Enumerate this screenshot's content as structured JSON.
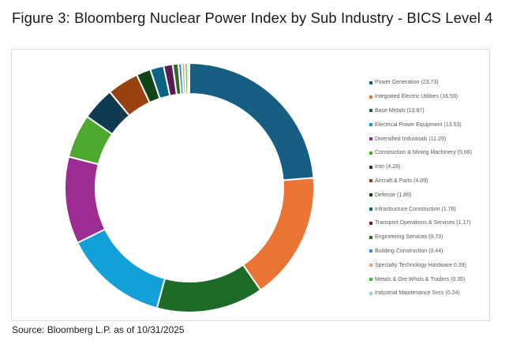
{
  "title": "Figure 3: Bloomberg Nuclear Power Index by Sub Industry - BICS Level 4",
  "source": "Source: Bloomberg L.P. as of 10/31/2025",
  "chart_data": {
    "type": "pie",
    "subtype": "donut",
    "title": "Figure 3: Bloomberg Nuclear Power Index by Sub Industry - BICS Level 4",
    "legend_position": "right",
    "categories": [
      "Power Generation",
      "Integrated Electric Utilities",
      "Base Metals",
      "Electrical Power Equipment",
      "Diversified Industrials",
      "Construction & Mining Machinery",
      "Iron",
      "Aircraft & Parts",
      "Defense",
      "Infrastructure Construction",
      "Transport Operations & Services",
      "Engineering Services",
      "Building Construction",
      "Specialty Technology Hardware",
      "Metals & Ore Whsls & Traders",
      "Industrial Maintenance Svcs"
    ],
    "values": [
      23.73,
      16.59,
      13.87,
      13.53,
      11.29,
      5.66,
      4.29,
      4.09,
      1.86,
      1.76,
      1.17,
      0.73,
      0.44,
      0.39,
      0.35,
      0.24
    ],
    "colors": [
      "#175f82",
      "#ea7434",
      "#1c6b27",
      "#12a0d6",
      "#9c2b92",
      "#4ea72e",
      "#0f3a50",
      "#984210",
      "#10451a",
      "#0c6283",
      "#5e1a58",
      "#2f6b1e",
      "#3b8fd0",
      "#f0a070",
      "#46b546",
      "#8fd0f0"
    ]
  },
  "legend": {
    "items": [
      {
        "label": "Power Generation (23.73)",
        "color": "#175f82"
      },
      {
        "label": "Integrated Electric Utilities (16.59)",
        "color": "#ea7434"
      },
      {
        "label": "Base Metals (13.87)",
        "color": "#1c6b27"
      },
      {
        "label": "Electrical Power Equipment (13.53)",
        "color": "#12a0d6"
      },
      {
        "label": "Diversified Industrials (11.29)",
        "color": "#9c2b92"
      },
      {
        "label": "Construction & Mining Machinery (5.66)",
        "color": "#4ea72e"
      },
      {
        "label": "Iron (4.29)",
        "color": "#0f3a50"
      },
      {
        "label": "Aircraft & Parts (4.09)",
        "color": "#984210"
      },
      {
        "label": "Defense (1.86)",
        "color": "#10451a"
      },
      {
        "label": "Infrastructure Construction (1.76)",
        "color": "#0c6283"
      },
      {
        "label": "Transport Operations & Services (1.17)",
        "color": "#5e1a58"
      },
      {
        "label": "Engineering Services (0.73)",
        "color": "#2f6b1e"
      },
      {
        "label": "Building Construction (0.44)",
        "color": "#3b8fd0"
      },
      {
        "label": "Specialty Technology Hardware 0.39)",
        "color": "#f0a070"
      },
      {
        "label": "Metals & Ore Whsls & Traders (0.35)",
        "color": "#46b546"
      },
      {
        "label": "Industrial Maintenance Svcs (0.24)",
        "color": "#8fd0f0"
      }
    ]
  }
}
